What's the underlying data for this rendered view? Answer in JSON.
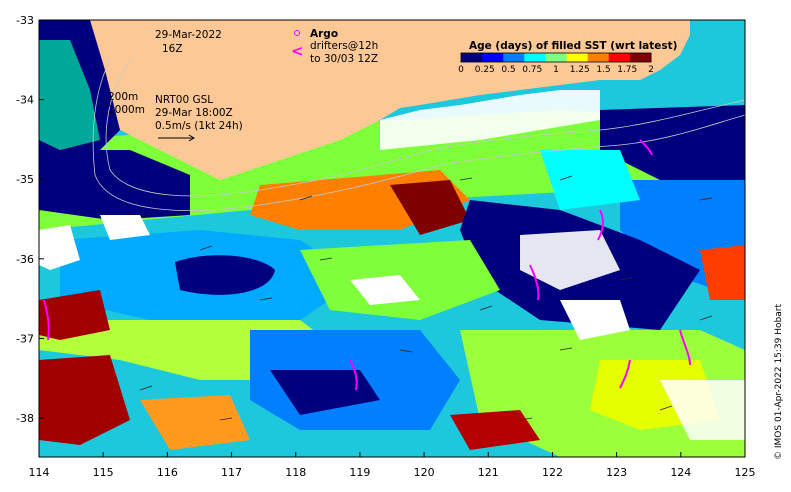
{
  "map": {
    "date": "29-Mar-2022",
    "time": "16Z",
    "legend_title": "Age (days) of filled SST (wrt latest)",
    "colorbar_ticks": [
      "0",
      "0.25",
      "0.5",
      "0.75",
      "1",
      "1.25",
      "1.5",
      "1.75",
      "2"
    ],
    "colorbar_colors": [
      "#00007f",
      "#0000ff",
      "#007fff",
      "#00ffff",
      "#7fff7f",
      "#ffff00",
      "#ff7f00",
      "#ff0000",
      "#7f0000"
    ],
    "argo_label": "Argo",
    "drifters_line1": "drifters@12h",
    "drifters_line2": "to 30/03 12Z",
    "isobath_1": "200m",
    "isobath_2": "1000m",
    "current_source": "NRT00 GSL",
    "current_time": "29-Mar 18:00Z",
    "vector_scale": "0.5m/s (1kt 24h)",
    "credit": "© IMOS 01-Apr-2022 15:39 Hobart",
    "lat_ticks": [
      "-33",
      "-34",
      "-35",
      "-36",
      "-37",
      "-38"
    ],
    "lon_ticks": [
      "114",
      "115",
      "116",
      "117",
      "118",
      "119",
      "120",
      "121",
      "122",
      "123",
      "124",
      "125"
    ],
    "land_color": "#fcc896",
    "drifter_color": "#ff00ff"
  }
}
